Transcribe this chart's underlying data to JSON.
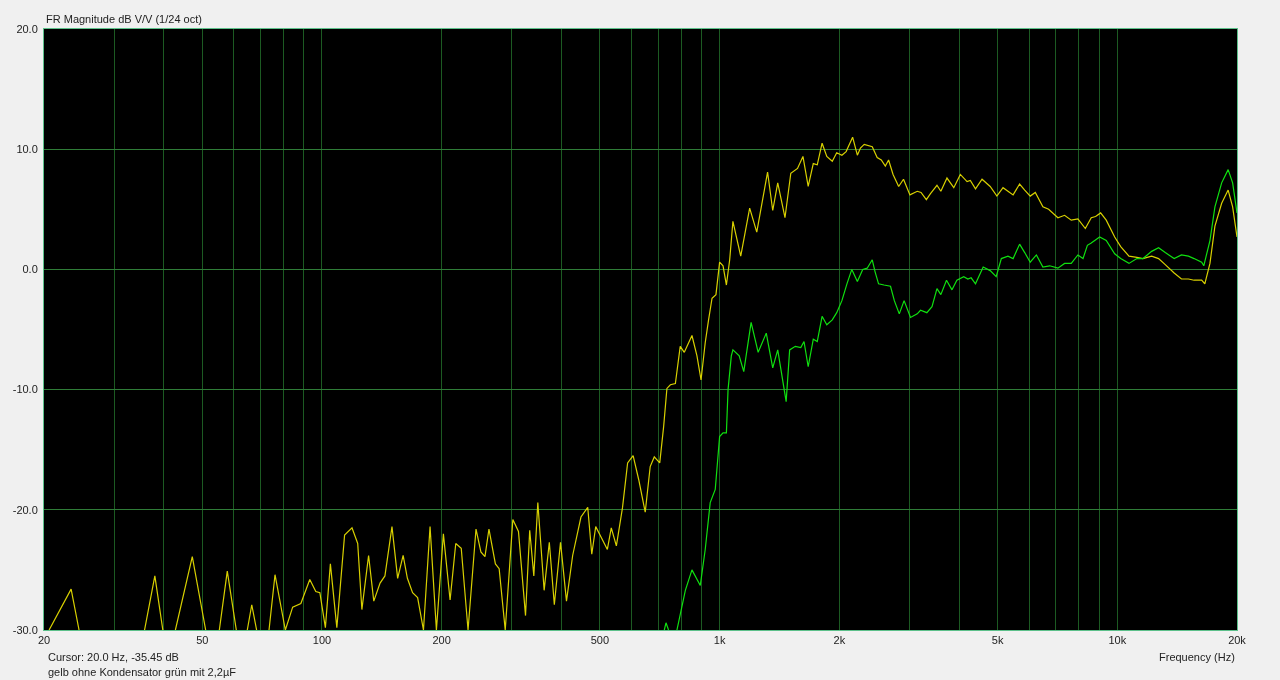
{
  "chart_data": {
    "type": "line",
    "title": "FR Magnitude dB V/V (1/24 oct)",
    "xlabel": "Frequency (Hz)",
    "annotations": [
      "Cursor: 20.0 Hz, -35.45 dB",
      "gelb ohne Kondensator grün mit 2,2µF"
    ],
    "log": "x",
    "grid": true,
    "xlim": [
      20,
      20000
    ],
    "ylim": [
      -30,
      20
    ],
    "xticks": [
      20,
      {
        "value": 30,
        "label": null
      },
      {
        "value": 40,
        "label": null
      },
      50,
      {
        "value": 60,
        "label": null
      },
      {
        "value": 70,
        "label": null
      },
      {
        "value": 80,
        "label": null
      },
      {
        "value": 90,
        "label": null
      },
      100,
      200,
      {
        "value": 300,
        "label": null
      },
      {
        "value": 400,
        "label": null
      },
      500,
      {
        "value": 600,
        "label": null
      },
      {
        "value": 700,
        "label": null
      },
      {
        "value": 800,
        "label": null
      },
      {
        "value": 900,
        "label": null
      },
      {
        "value": 1000,
        "label": "1k"
      },
      {
        "value": 2000,
        "label": "2k"
      },
      {
        "value": 3000,
        "label": null
      },
      {
        "value": 4000,
        "label": null
      },
      {
        "value": 5000,
        "label": "5k"
      },
      {
        "value": 6000,
        "label": null
      },
      {
        "value": 7000,
        "label": null
      },
      {
        "value": 8000,
        "label": null
      },
      {
        "value": 9000,
        "label": null
      },
      {
        "value": 10000,
        "label": "10k"
      },
      {
        "value": 20000,
        "label": "20k"
      }
    ],
    "yticks": [
      {
        "value": -30,
        "label": "-30.0"
      },
      {
        "value": -20,
        "label": "-20.0"
      },
      {
        "value": -10,
        "label": "-10.0"
      },
      {
        "value": 0,
        "label": "0.0"
      },
      {
        "value": 10,
        "label": "10.0"
      },
      {
        "value": 20,
        "label": "20.0"
      }
    ],
    "series": [
      {
        "color": "#d8d000",
        "x": [
          20.6,
          23.4,
          24.5,
          30,
          35.8,
          38.0,
          39.8,
          41.3,
          42.8,
          47.2,
          51.0,
          53,
          55.2,
          57.8,
          60.9,
          63,
          64.9,
          66.6,
          68.5,
          71,
          73.6,
          76.2,
          80.9,
          84.4,
          88.5,
          93.2,
          96.5,
          98.8,
          102,
          105,
          109,
          114,
          119,
          123,
          126,
          131,
          135,
          140,
          144,
          150,
          155,
          160,
          164,
          169,
          174,
          180,
          187,
          194,
          202,
          210,
          217,
          224,
          233,
          244,
          251,
          257,
          263,
          273,
          279,
          289,
          302,
          312,
          325,
          333,
          341,
          349,
          362,
          373,
          384,
          398,
          412,
          427,
          448,
          466,
          477,
          488,
          504,
          522,
          534,
          550,
          570,
          587,
          606,
          626,
          650,
          669,
          685,
          707,
          723,
          737,
          752,
          774,
          796,
          815,
          852,
          877,
          898,
          920,
          938,
          957,
          979,
          1000,
          1020,
          1040,
          1060,
          1080,
          1130,
          1190,
          1240,
          1320,
          1360,
          1400,
          1460,
          1510,
          1570,
          1620,
          1670,
          1720,
          1760,
          1810,
          1860,
          1920,
          1970,
          2030,
          2080,
          2160,
          2220,
          2260,
          2310,
          2420,
          2490,
          2550,
          2610,
          2660,
          2730,
          2820,
          2900,
          3010,
          3140,
          3210,
          3310,
          3390,
          3520,
          3600,
          3730,
          3880,
          4030,
          4190,
          4270,
          4400,
          4570,
          4790,
          4980,
          5160,
          5310,
          5470,
          5680,
          5850,
          6040,
          6220,
          6500,
          6720,
          7090,
          7370,
          7660,
          7960,
          8310,
          8600,
          8820,
          9080,
          9380,
          9850,
          10200,
          10700,
          11200,
          11600,
          12200,
          12700,
          13200,
          13900,
          14500,
          15100,
          15600,
          16300,
          16600,
          17100,
          17600,
          18300,
          19000,
          19500,
          20000
        ],
        "values": [
          -30,
          -26.6,
          -30,
          null,
          -30,
          -25.5,
          -30,
          null,
          -30,
          -23.9,
          -30,
          null,
          -30,
          -25.1,
          -30,
          null,
          -30,
          -27.9,
          -30,
          null,
          -30,
          -25.4,
          -30,
          -28.1,
          -27.8,
          -25.8,
          -26.8,
          -26.9,
          -29.8,
          -24.5,
          -29.8,
          -22.1,
          -21.5,
          -22.8,
          -28.3,
          -23.8,
          -27.6,
          -26.1,
          -25.5,
          -21.4,
          -25.7,
          -23.8,
          -25.7,
          -26.9,
          -27.3,
          -30,
          -21.4,
          -30,
          -22.0,
          -27.5,
          -22.8,
          -23.2,
          -30,
          -21.6,
          -23.5,
          -23.9,
          -21.6,
          -24.5,
          -24.9,
          -30,
          -20.8,
          -21.8,
          -28.8,
          -21.7,
          -25.5,
          -19.4,
          -26.7,
          -22.7,
          -27.9,
          -22.7,
          -27.6,
          -23.8,
          -20.6,
          -19.8,
          -23.7,
          -21.4,
          -22.3,
          -23.3,
          -21.5,
          -23.0,
          -19.8,
          -16.1,
          -15.5,
          -17.5,
          -20.2,
          -16.4,
          -15.6,
          -16.1,
          -13.1,
          -9.9,
          -9.6,
          -9.5,
          -6.4,
          -6.9,
          -5.5,
          -7.2,
          -9.2,
          -6.1,
          -4.2,
          -2.4,
          -2.1,
          0.6,
          0.3,
          -1.3,
          0.8,
          4.0,
          1.1,
          5.1,
          3.1,
          8.1,
          4.9,
          7.2,
          4.3,
          8.0,
          8.4,
          9.4,
          6.9,
          8.8,
          8.7,
          10.5,
          9.4,
          9.0,
          9.7,
          9.5,
          9.8,
          11.0,
          9.5,
          10.1,
          10.4,
          10.2,
          9.3,
          9.1,
          8.6,
          9.1,
          7.9,
          6.9,
          7.5,
          6.2,
          6.5,
          6.4,
          5.8,
          6.3,
          7.0,
          6.5,
          7.6,
          6.8,
          7.9,
          7.3,
          7.4,
          6.7,
          7.5,
          6.9,
          6.1,
          6.8,
          6.5,
          6.2,
          7.1,
          6.6,
          6.1,
          6.4,
          5.2,
          5.0,
          4.3,
          4.5,
          4.1,
          4.2,
          3.4,
          4.3,
          4.4,
          4.7,
          4.1,
          2.7,
          1.9,
          1.1,
          1.0,
          0.9,
          1.1,
          0.9,
          0.4,
          -0.3,
          -0.8,
          -0.8,
          -0.9,
          -0.9,
          -1.2,
          0.5,
          3.6,
          5.5,
          6.6,
          5.2,
          2.7
        ]
      },
      {
        "color": "#10e010",
        "x": [
          726,
          733,
          744,
          760,
          781,
          820,
          852,
          894,
          920,
          947,
          975,
          1000,
          1020,
          1040,
          1050,
          1070,
          1080,
          1120,
          1150,
          1200,
          1250,
          1310,
          1360,
          1400,
          1470,
          1500,
          1550,
          1600,
          1630,
          1670,
          1720,
          1760,
          1810,
          1860,
          1920,
          1970,
          2030,
          2090,
          2150,
          2220,
          2290,
          2350,
          2420,
          2460,
          2510,
          2590,
          2690,
          2750,
          2830,
          2910,
          3020,
          3140,
          3200,
          3320,
          3420,
          3520,
          3600,
          3720,
          3840,
          3950,
          4110,
          4210,
          4290,
          4400,
          4600,
          4790,
          4960,
          5110,
          5310,
          5470,
          5680,
          5850,
          6040,
          6260,
          6500,
          6760,
          7090,
          7370,
          7660,
          7960,
          8200,
          8410,
          8600,
          9030,
          9380,
          9850,
          10200,
          10700,
          11200,
          11600,
          12200,
          12700,
          13200,
          13900,
          14500,
          15100,
          15600,
          16300,
          16500,
          17100,
          17600,
          18300,
          19000,
          19500,
          20000
        ],
        "values": [
          -30,
          -29.4,
          -30,
          null,
          -30,
          -26.7,
          -25.0,
          -26.3,
          -23.3,
          -19.4,
          -18.3,
          -13.9,
          -13.6,
          -13.6,
          -10.0,
          -7.2,
          -6.7,
          -7.2,
          -8.5,
          -4.4,
          -6.9,
          -5.3,
          -8.2,
          -6.7,
          -11.0,
          -6.7,
          -6.4,
          -6.5,
          -6.0,
          -8.1,
          -5.8,
          -6.0,
          -3.9,
          -4.6,
          -4.2,
          -3.6,
          -2.6,
          -1.2,
          0.0,
          -1.0,
          0.0,
          0.1,
          0.8,
          -0.2,
          -1.2,
          -1.3,
          -1.4,
          -2.6,
          -3.7,
          -2.6,
          -4.0,
          -3.7,
          -3.4,
          -3.6,
          -3.1,
          -1.6,
          -2.1,
          -0.9,
          -1.7,
          -0.9,
          -0.6,
          -0.8,
          -0.7,
          -1.2,
          0.2,
          -0.1,
          -0.6,
          0.9,
          1.1,
          0.9,
          2.1,
          1.4,
          0.6,
          1.2,
          0.2,
          0.3,
          0.1,
          0.5,
          0.5,
          1.2,
          0.9,
          2.0,
          2.2,
          2.7,
          2.4,
          1.3,
          0.9,
          0.5,
          0.9,
          0.9,
          1.5,
          1.8,
          1.4,
          0.9,
          1.2,
          1.1,
          0.9,
          0.6,
          0.3,
          2.4,
          5.2,
          7.2,
          8.3,
          7.2,
          4.7
        ]
      }
    ]
  }
}
